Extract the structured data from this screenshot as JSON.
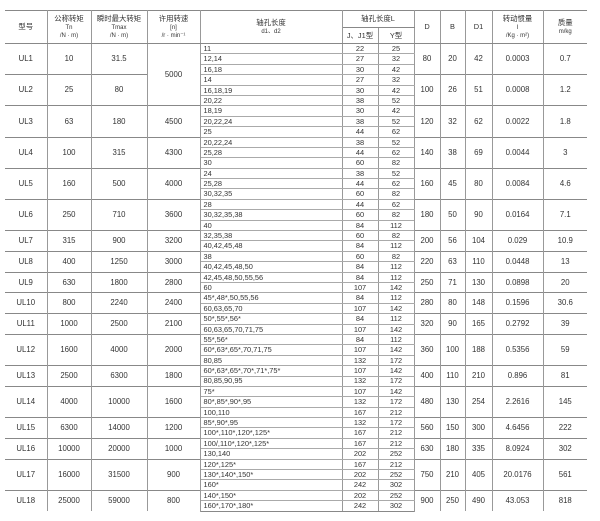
{
  "header": {
    "model": "型号",
    "nominal_torque": {
      "title": "公称转矩",
      "symbol": "Tn",
      "unit": "/N · m)"
    },
    "max_torque": {
      "title": "瞬时最大转矩",
      "symbol": "Tmax",
      "unit": "/N · m)"
    },
    "speed": {
      "title": "许用转速",
      "symbol": "[n]",
      "unit": "/r · min⁻¹"
    },
    "bore": {
      "title": "轴孔长度",
      "symbol": "d1、d2"
    },
    "length": {
      "title": "轴孔长度L",
      "j_type": "J、J1型",
      "y_type": "Y型"
    },
    "D": "D",
    "B": "B",
    "D1": "D1",
    "inertia": {
      "title": "转动惯量",
      "symbol": "I",
      "unit": "/Kg · m²)"
    },
    "mass": {
      "title": "质量",
      "unit": "m/kg"
    }
  },
  "rows": [
    {
      "model": "UL1",
      "tn": "10",
      "tmax": "31.5",
      "speed": "5000",
      "speed_span": 6,
      "D": "80",
      "B": "20",
      "D1": "42",
      "I": "0.0003",
      "m": "0.7",
      "subs": [
        [
          "11",
          "22",
          "25"
        ],
        [
          "12,14",
          "27",
          "32"
        ],
        [
          "16,18",
          "30",
          "42"
        ]
      ]
    },
    {
      "model": "UL2",
      "tn": "25",
      "tmax": "80",
      "D": "100",
      "B": "26",
      "D1": "51",
      "I": "0.0008",
      "m": "1.2",
      "subs": [
        [
          "14",
          "27",
          "32"
        ],
        [
          "16,18,19",
          "30",
          "42"
        ],
        [
          "20,22",
          "38",
          "52"
        ]
      ]
    },
    {
      "model": "UL3",
      "tn": "63",
      "tmax": "180",
      "speed": "4500",
      "speed_span": 3,
      "D": "120",
      "B": "32",
      "D1": "62",
      "I": "0.0022",
      "m": "1.8",
      "subs": [
        [
          "18,19",
          "30",
          "42"
        ],
        [
          "20,22,24",
          "38",
          "52"
        ],
        [
          "25",
          "44",
          "62"
        ]
      ]
    },
    {
      "model": "UL4",
      "tn": "100",
      "tmax": "315",
      "speed": "4300",
      "speed_span": 3,
      "D": "140",
      "B": "38",
      "D1": "69",
      "I": "0.0044",
      "m": "3",
      "subs": [
        [
          "20,22,24",
          "38",
          "52"
        ],
        [
          "25,28",
          "44",
          "62"
        ],
        [
          "30",
          "60",
          "82"
        ]
      ]
    },
    {
      "model": "UL5",
      "tn": "160",
      "tmax": "500",
      "speed": "4000",
      "speed_span": 3,
      "D": "160",
      "B": "45",
      "D1": "80",
      "I": "0.0084",
      "m": "4.6",
      "subs": [
        [
          "24",
          "38",
          "52"
        ],
        [
          "25,28",
          "44",
          "62"
        ],
        [
          "30,32,35",
          "60",
          "82"
        ]
      ]
    },
    {
      "model": "UL6",
      "tn": "250",
      "tmax": "710",
      "speed": "3600",
      "speed_span": 3,
      "D": "180",
      "B": "50",
      "D1": "90",
      "I": "0.0164",
      "m": "7.1",
      "subs": [
        [
          "28",
          "44",
          "62"
        ],
        [
          "30,32,35,38",
          "60",
          "82"
        ],
        [
          "40",
          "84",
          "112"
        ]
      ]
    },
    {
      "model": "UL7",
      "tn": "315",
      "tmax": "900",
      "speed": "3200",
      "speed_span": 2,
      "D": "200",
      "B": "56",
      "D1": "104",
      "I": "0.029",
      "m": "10.9",
      "subs": [
        [
          "32,35,38",
          "60",
          "82"
        ],
        [
          "40,42,45,48",
          "84",
          "112"
        ]
      ]
    },
    {
      "model": "UL8",
      "tn": "400",
      "tmax": "1250",
      "speed": "3000",
      "speed_span": 2,
      "D": "220",
      "B": "63",
      "D1": "110",
      "I": "0.0448",
      "m": "13",
      "subs": [
        [
          "38",
          "60",
          "82"
        ],
        [
          "40,42,45,48,50",
          "84",
          "112"
        ]
      ]
    },
    {
      "model": "UL9",
      "tn": "630",
      "tmax": "1800",
      "speed": "2800",
      "speed_span": 2,
      "D": "250",
      "B": "71",
      "D1": "130",
      "I": "0.0898",
      "m": "20",
      "subs": [
        [
          "42,45,48,50,55,56",
          "84",
          "112"
        ],
        [
          "60",
          "107",
          "142"
        ]
      ]
    },
    {
      "model": "UL10",
      "tn": "800",
      "tmax": "2240",
      "speed": "2400",
      "speed_span": 2,
      "D": "280",
      "B": "80",
      "D1": "148",
      "I": "0.1596",
      "m": "30.6",
      "subs": [
        [
          "45*,48*,50,55,56",
          "84",
          "112"
        ],
        [
          "60,63,65,70",
          "107",
          "142"
        ]
      ]
    },
    {
      "model": "UL11",
      "tn": "1000",
      "tmax": "2500",
      "speed": "2100",
      "speed_span": 2,
      "D": "320",
      "B": "90",
      "D1": "165",
      "I": "0.2792",
      "m": "39",
      "subs": [
        [
          "50*,55*,56*",
          "84",
          "112"
        ],
        [
          "60,63,65,70,71,75",
          "107",
          "142"
        ]
      ]
    },
    {
      "model": "UL12",
      "tn": "1600",
      "tmax": "4000",
      "speed": "2000",
      "speed_span": 3,
      "D": "360",
      "B": "100",
      "D1": "188",
      "I": "0.5356",
      "m": "59",
      "subs": [
        [
          "55*,56*",
          "84",
          "112"
        ],
        [
          "60*,63*,65*,70,71,75",
          "107",
          "142"
        ],
        [
          "80,85",
          "132",
          "172"
        ]
      ]
    },
    {
      "model": "UL13",
      "tn": "2500",
      "tmax": "6300",
      "speed": "1800",
      "speed_span": 2,
      "D": "400",
      "B": "110",
      "D1": "210",
      "I": "0.896",
      "m": "81",
      "subs": [
        [
          "60*,63*,65*,70*,71*,75*",
          "107",
          "142"
        ],
        [
          "80,85,90,95",
          "132",
          "172"
        ]
      ]
    },
    {
      "model": "UL14",
      "tn": "4000",
      "tmax": "10000",
      "speed": "1600",
      "speed_span": 3,
      "D": "480",
      "B": "130",
      "D1": "254",
      "I": "2.2616",
      "m": "145",
      "subs": [
        [
          "75*",
          "107",
          "142"
        ],
        [
          "80*,85*,90*,95",
          "132",
          "172"
        ],
        [
          "100,110",
          "167",
          "212"
        ]
      ]
    },
    {
      "model": "UL15",
      "tn": "6300",
      "tmax": "14000",
      "speed": "1200",
      "speed_span": 2,
      "D": "560",
      "B": "150",
      "D1": "300",
      "I": "4.6456",
      "m": "222",
      "subs": [
        [
          "85*,90*,95",
          "132",
          "172"
        ],
        [
          "100*,110*,120*,125*",
          "167",
          "212"
        ]
      ]
    },
    {
      "model": "UL16",
      "tn": "10000",
      "tmax": "20000",
      "speed": "1000",
      "speed_span": 2,
      "D": "630",
      "B": "180",
      "D1": "335",
      "I": "8.0924",
      "m": "302",
      "subs": [
        [
          "100/,110*,120*,125*",
          "167",
          "212"
        ],
        [
          "130,140",
          "202",
          "252"
        ]
      ]
    },
    {
      "model": "UL17",
      "tn": "16000",
      "tmax": "31500",
      "speed": "900",
      "speed_span": 3,
      "D": "750",
      "B": "210",
      "D1": "405",
      "I": "20.0176",
      "m": "561",
      "subs": [
        [
          "120*,125*",
          "167",
          "212"
        ],
        [
          "130*,140*,150*",
          "202",
          "252"
        ],
        [
          "160*",
          "242",
          "302"
        ]
      ]
    },
    {
      "model": "UL18",
      "tn": "25000",
      "tmax": "59000",
      "speed": "800",
      "speed_span": 2,
      "D": "900",
      "B": "250",
      "D1": "490",
      "I": "43.053",
      "m": "818",
      "subs": [
        [
          "140*,150*",
          "202",
          "252"
        ],
        [
          "160*,170*,180*",
          "242",
          "302"
        ]
      ]
    }
  ]
}
